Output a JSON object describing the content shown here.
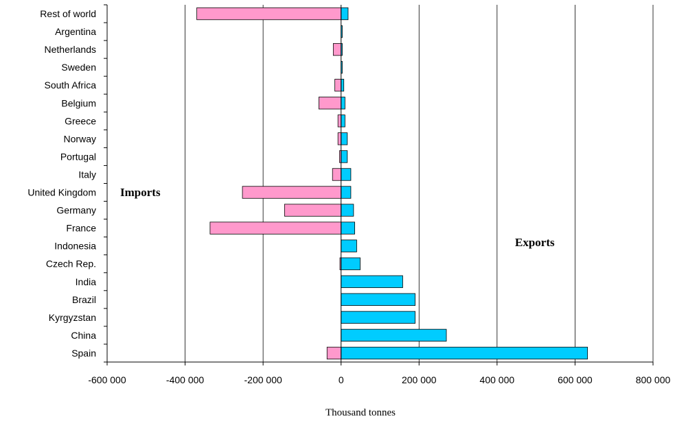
{
  "chart_data": {
    "type": "bar",
    "orientation": "horizontal",
    "categories": [
      "Rest of world",
      "Argentina",
      "Netherlands",
      "Sweden",
      "South Africa",
      "Belgium",
      "Greece",
      "Norway",
      "Portugal",
      "Italy",
      "United Kingdom",
      "Germany",
      "France",
      "Indonesia",
      "Czech Rep.",
      "India",
      "Brazil",
      "Kyrgyzstan",
      "China",
      "Spain"
    ],
    "series": [
      {
        "color": "#ff99cc",
        "values": [
          -370000,
          0,
          -20000,
          0,
          -16000,
          -57000,
          -8000,
          -8000,
          -4000,
          -22000,
          -253000,
          -145000,
          -336000,
          0,
          -3000,
          0,
          0,
          0,
          0,
          -36000
        ]
      },
      {
        "color": "#00ccff",
        "values": [
          18000,
          3000,
          3000,
          3000,
          7000,
          10000,
          10000,
          16000,
          16000,
          25000,
          25000,
          32000,
          35000,
          40000,
          49000,
          158000,
          190000,
          190000,
          270000,
          632000
        ]
      }
    ],
    "xlim": [
      -600000,
      800000
    ],
    "xticks": [
      -600000,
      -400000,
      -200000,
      0,
      200000,
      400000,
      600000,
      800000
    ],
    "xtick_labels": [
      "-600 000",
      "-400 000",
      "-200 000",
      "0",
      "200 000",
      "400 000",
      "600 000",
      "800 000"
    ],
    "xlabel": "Thousand tonnes",
    "ylabel": "",
    "title": "",
    "annotations": [
      "Imports",
      "Exports"
    ],
    "grid": "vertical major gridlines"
  }
}
